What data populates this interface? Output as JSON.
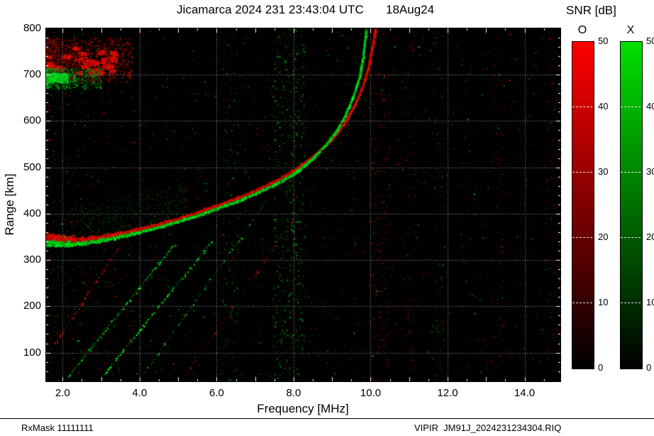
{
  "header": {
    "title_left": "Jicamarca 2024 231 23:43:04 UTC",
    "title_right": "18Aug24"
  },
  "colorbar_panel": {
    "label": "SNR [dB]",
    "o_label": "O",
    "x_label": "X",
    "tick_labels": [
      "50",
      "40",
      "30",
      "20",
      "10",
      "0"
    ]
  },
  "axes": {
    "xlabel": "Frequency [MHz]",
    "ylabel": "Range [km]",
    "x_tick_labels": [
      "2.0",
      "4.0",
      "6.0",
      "8.0",
      "10.0",
      "12.0",
      "14.0"
    ],
    "y_tick_labels": [
      "800",
      "700",
      "600",
      "500",
      "400",
      "300",
      "200",
      "100"
    ]
  },
  "footer": {
    "left": "RxMask 11111111",
    "right": "VIPIR  JM91J_2024231234304.RIQ"
  },
  "chart_data": {
    "type": "heatmap",
    "description": "HF ionogram: echo SNR versus sounding frequency and virtual range; O-mode echoes red, X-mode echoes green on black background",
    "title": "Jicamarca 2024 231 23:43:04 UTC 18Aug24",
    "xlabel": "Frequency [MHz]",
    "ylabel": "Range [km]",
    "xlim": [
      1.57,
      14.93
    ],
    "ylim": [
      38,
      800
    ],
    "x_ticks": [
      2,
      4,
      6,
      8,
      10,
      12,
      14
    ],
    "y_ticks": [
      100,
      200,
      300,
      400,
      500,
      600,
      700,
      800
    ],
    "x_minor_step": 0.5,
    "y_minor_step": 20,
    "grid": true,
    "colorbar": {
      "label": "SNR [dB]",
      "min": 0,
      "max": 50,
      "ticks": [
        0,
        10,
        20,
        30,
        40,
        50
      ],
      "o_color": "#ff0000",
      "x_color": "#00e000"
    },
    "o_trace": [
      [
        1.57,
        352
      ],
      [
        2.0,
        346
      ],
      [
        2.5,
        344
      ],
      [
        3.0,
        350
      ],
      [
        3.5,
        358
      ],
      [
        4.0,
        367
      ],
      [
        4.5,
        378
      ],
      [
        5.0,
        390
      ],
      [
        5.5,
        403
      ],
      [
        6.0,
        418
      ],
      [
        6.5,
        433
      ],
      [
        7.0,
        450
      ],
      [
        7.5,
        470
      ],
      [
        8.0,
        494
      ],
      [
        8.5,
        524
      ],
      [
        9.0,
        562
      ],
      [
        9.3,
        595
      ],
      [
        9.6,
        638
      ],
      [
        9.8,
        678
      ],
      [
        9.95,
        722
      ],
      [
        10.05,
        765
      ],
      [
        10.12,
        800
      ]
    ],
    "x_trace": [
      [
        1.57,
        338
      ],
      [
        2.0,
        335
      ],
      [
        2.5,
        336
      ],
      [
        3.0,
        343
      ],
      [
        3.5,
        351
      ],
      [
        4.0,
        361
      ],
      [
        4.5,
        372
      ],
      [
        5.0,
        384
      ],
      [
        5.5,
        397
      ],
      [
        6.0,
        412
      ],
      [
        6.5,
        427
      ],
      [
        7.0,
        444
      ],
      [
        7.5,
        463
      ],
      [
        8.0,
        487
      ],
      [
        8.4,
        513
      ],
      [
        8.8,
        546
      ],
      [
        9.1,
        578
      ],
      [
        9.35,
        615
      ],
      [
        9.55,
        655
      ],
      [
        9.7,
        695
      ],
      [
        9.8,
        740
      ],
      [
        9.88,
        800
      ]
    ],
    "spread_f": {
      "red_region": {
        "f": [
          1.57,
          3.8
        ],
        "h": [
          685,
          780
        ]
      },
      "green_region": {
        "f": [
          1.57,
          3.0
        ],
        "h": [
          670,
          715
        ]
      }
    },
    "green_start_blob": {
      "f": [
        1.57,
        2.2
      ],
      "h": [
        330,
        352
      ]
    },
    "streaks": [
      {
        "from": [
          2.05,
          40
        ],
        "to": [
          4.9,
          335
        ],
        "color": "green",
        "n": 420,
        "bright": 0.12
      },
      {
        "from": [
          2.95,
          42
        ],
        "to": [
          5.9,
          345
        ],
        "color": "green",
        "n": 320,
        "bright": 0.22
      },
      {
        "from": [
          4.1,
          55
        ],
        "to": [
          7.3,
          430
        ],
        "color": "green",
        "n": 220,
        "bright": 0.06
      },
      {
        "from": [
          1.8,
          120
        ],
        "to": [
          3.5,
          335
        ],
        "color": "red",
        "n": 200,
        "bright": 0.08
      },
      {
        "from": [
          5.1,
          40
        ],
        "to": [
          8.0,
          390
        ],
        "color": "red",
        "n": 150,
        "bright": 0.04
      }
    ],
    "noise_bands": [
      {
        "f": [
          7.45,
          8.3
        ],
        "color": "green",
        "n": 850,
        "imax": 150
      },
      {
        "f": [
          6.15,
          6.55
        ],
        "color": "green",
        "n": 230,
        "imax": 120
      },
      {
        "f": [
          9.95,
          10.5
        ],
        "color": "red",
        "n": 380,
        "imax": 130
      },
      {
        "f": [
          13.1,
          13.45
        ],
        "color": "red",
        "n": 170,
        "imax": 110
      },
      {
        "f": [
          11.6,
          11.9
        ],
        "color": "green",
        "n": 130,
        "imax": 100
      },
      {
        "f": [
          10.9,
          11.15
        ],
        "color": "red",
        "n": 140,
        "imax": 110
      },
      {
        "f": [
          14.55,
          14.93
        ],
        "color": "red",
        "n": 200,
        "imax": 120
      }
    ]
  }
}
